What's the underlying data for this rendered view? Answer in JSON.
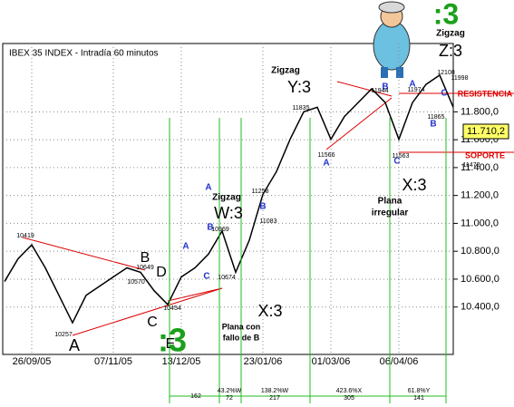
{
  "chart_data": {
    "type": "line",
    "title": "IBEX 35 INDEX - Intradía 60 minutos",
    "categories": [
      null,
      null,
      "26/09/05",
      null,
      null,
      null,
      null,
      null,
      "07/11/05",
      null,
      null,
      null,
      null,
      "13/12/05",
      null,
      null,
      null,
      null,
      null,
      "23/01/06",
      null,
      null,
      null,
      null,
      "01/03/06",
      null,
      null,
      null,
      null,
      "06/04/06",
      null,
      null,
      null,
      null
    ],
    "series": [
      {
        "color": "#000000",
        "values": [
          10583,
          10747,
          10846,
          10681,
          10484,
          10287,
          10484,
          10550,
          10616,
          10681,
          10649,
          10517,
          10418,
          10616,
          10681,
          10780,
          10945,
          10649,
          10879,
          11208,
          11372,
          11603,
          11800,
          11833,
          11603,
          11767,
          11866,
          11965,
          11866,
          11603,
          11866,
          11997,
          12063,
          11833
        ]
      }
    ],
    "ylim": [
      10060,
      12290
    ],
    "yticks": [
      {
        "value": 10400,
        "label": "10.400,0"
      },
      {
        "value": 10600,
        "label": "10.600,0"
      },
      {
        "value": 10800,
        "label": "10.800,0"
      },
      {
        "value": 11000,
        "label": "11.000,0"
      },
      {
        "value": 11200,
        "label": "11.200,0"
      },
      {
        "value": 11400,
        "label": "11.400,0"
      },
      {
        "value": 11600,
        "label": "11.600,0"
      },
      {
        "value": 11800,
        "label": "11.800,0"
      }
    ],
    "grid": true,
    "annotations": [
      "Zigzag",
      "Y:3",
      "Zigzag",
      "W:3",
      "X:3",
      "Plana con",
      "fallo de B",
      "X:3",
      "Plana",
      "irregular",
      "Zigzag",
      "Z:3",
      "A",
      "B",
      "C",
      "D",
      "E",
      ":3",
      ":3",
      "RESISTENCIA",
      "SOPORTE",
      "11.710,2",
      "A",
      "B",
      "C",
      "A",
      "B",
      "C",
      "A",
      "B",
      "C",
      "A",
      "B",
      "10419",
      "10257",
      "10649",
      "10570",
      "10454",
      "10969",
      "10674",
      "11258",
      "11083",
      "11835",
      "11566",
      "11944",
      "11563",
      "11974",
      "11865",
      "12108",
      "11998",
      "11472",
      "162",
      "43.2%W",
      "72",
      "138.2%W",
      "217",
      "423.6%X",
      "305",
      "61.8%Y",
      "141"
    ]
  }
}
